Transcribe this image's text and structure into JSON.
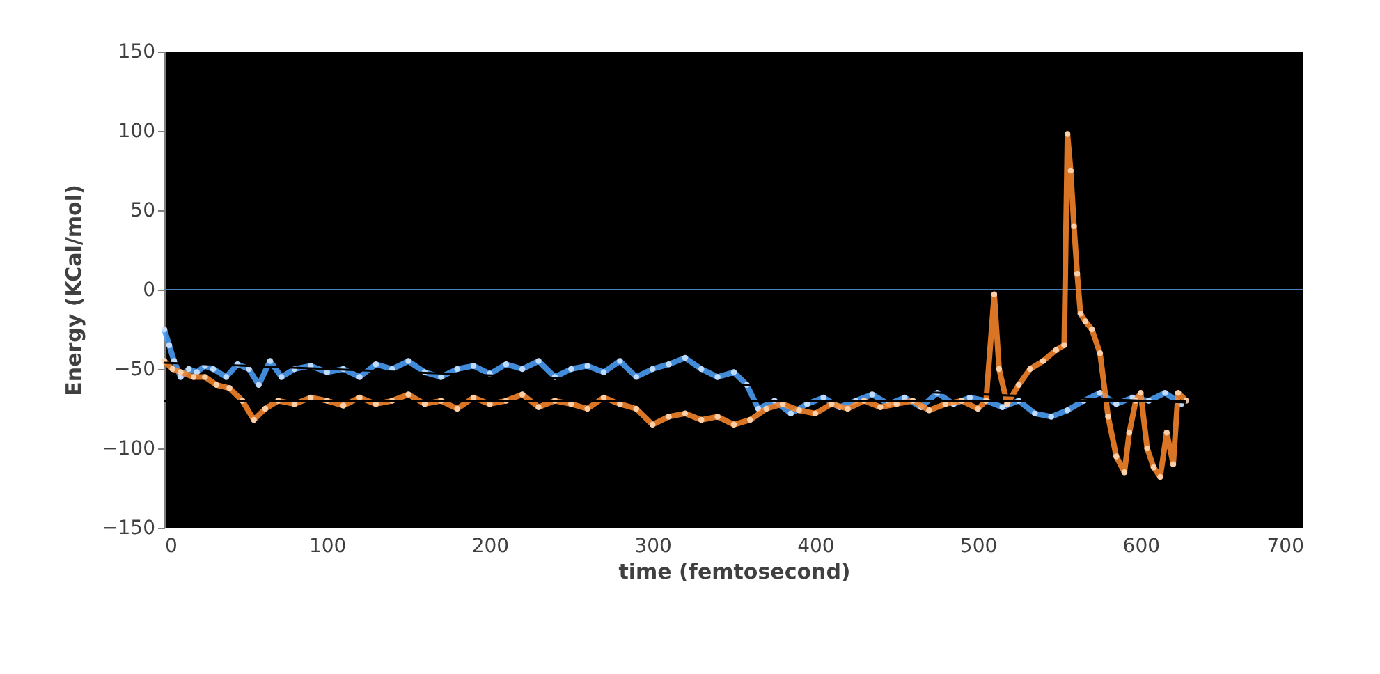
{
  "chart_data": {
    "type": "line",
    "xlabel": "time (femtosecond)",
    "ylabel": "Energy (KCal/mol)",
    "xlim": [
      0,
      700
    ],
    "xticks": [
      0,
      100,
      200,
      300,
      400,
      500,
      600,
      700
    ],
    "ylim": [
      -150,
      150
    ],
    "yticks": [
      -150,
      -100,
      -50,
      0,
      50,
      100,
      150
    ],
    "grid": false,
    "ref_lines": [
      {
        "axis": "y",
        "value": 0,
        "color": "#4a7ebb"
      }
    ],
    "series": [
      {
        "color": "#4da3ff",
        "marker": "circle",
        "x": [
          0,
          3,
          6,
          10,
          15,
          20,
          25,
          30,
          38,
          45,
          52,
          58,
          65,
          72,
          80,
          90,
          100,
          110,
          120,
          130,
          140,
          150,
          160,
          170,
          180,
          190,
          200,
          210,
          220,
          230,
          240,
          250,
          260,
          270,
          280,
          290,
          300,
          310,
          320,
          330,
          340,
          350,
          358,
          365,
          375,
          385,
          395,
          405,
          415,
          425,
          435,
          445,
          455,
          465,
          475,
          485,
          495,
          505,
          515,
          525,
          535,
          545,
          555,
          565,
          575,
          585,
          595,
          605,
          615,
          625
        ],
        "values": [
          -25,
          -35,
          -45,
          -55,
          -50,
          -52,
          -48,
          -50,
          -55,
          -47,
          -50,
          -60,
          -45,
          -55,
          -50,
          -48,
          -52,
          -50,
          -55,
          -47,
          -50,
          -45,
          -52,
          -55,
          -50,
          -48,
          -53,
          -47,
          -50,
          -45,
          -55,
          -50,
          -48,
          -52,
          -45,
          -55,
          -50,
          -47,
          -43,
          -50,
          -55,
          -52,
          -60,
          -75,
          -70,
          -78,
          -72,
          -68,
          -74,
          -70,
          -66,
          -72,
          -68,
          -74,
          -65,
          -72,
          -68,
          -70,
          -74,
          -70,
          -78,
          -80,
          -76,
          -70,
          -65,
          -72,
          -68,
          -70,
          -65,
          -72
        ]
      },
      {
        "color": "#ff8a2a",
        "marker": "circle",
        "x": [
          0,
          5,
          10,
          18,
          25,
          32,
          40,
          48,
          55,
          62,
          70,
          80,
          90,
          100,
          110,
          120,
          130,
          140,
          150,
          160,
          170,
          180,
          190,
          200,
          210,
          220,
          230,
          240,
          250,
          260,
          270,
          280,
          290,
          300,
          310,
          320,
          330,
          340,
          350,
          360,
          370,
          380,
          390,
          400,
          410,
          420,
          430,
          440,
          450,
          460,
          470,
          480,
          490,
          500,
          505,
          510,
          513,
          518,
          525,
          532,
          540,
          548,
          553,
          555,
          557,
          559,
          561,
          563,
          566,
          570,
          575,
          580,
          585,
          590,
          593,
          597,
          600,
          604,
          608,
          612,
          616,
          620,
          623,
          628
        ],
        "values": [
          -45,
          -50,
          -52,
          -55,
          -55,
          -60,
          -62,
          -70,
          -82,
          -75,
          -70,
          -72,
          -68,
          -70,
          -73,
          -68,
          -72,
          -70,
          -66,
          -72,
          -70,
          -75,
          -68,
          -72,
          -70,
          -66,
          -74,
          -70,
          -72,
          -75,
          -68,
          -72,
          -75,
          -85,
          -80,
          -78,
          -82,
          -80,
          -85,
          -82,
          -75,
          -72,
          -76,
          -78,
          -72,
          -75,
          -70,
          -74,
          -72,
          -70,
          -76,
          -72,
          -70,
          -75,
          -70,
          -3,
          -50,
          -72,
          -60,
          -50,
          -45,
          -38,
          -35,
          98,
          75,
          40,
          10,
          -15,
          -20,
          -25,
          -40,
          -80,
          -105,
          -115,
          -90,
          -70,
          -65,
          -100,
          -112,
          -118,
          -90,
          -110,
          -65,
          -70
        ]
      },
      {
        "color": "#000000",
        "marker": "none",
        "x": [
          0,
          628
        ],
        "values": [
          -46,
          -71
        ]
      },
      {
        "color": "#000000",
        "marker": "none",
        "x": [
          0,
          628
        ],
        "values": [
          -70,
          -70
        ]
      }
    ]
  }
}
